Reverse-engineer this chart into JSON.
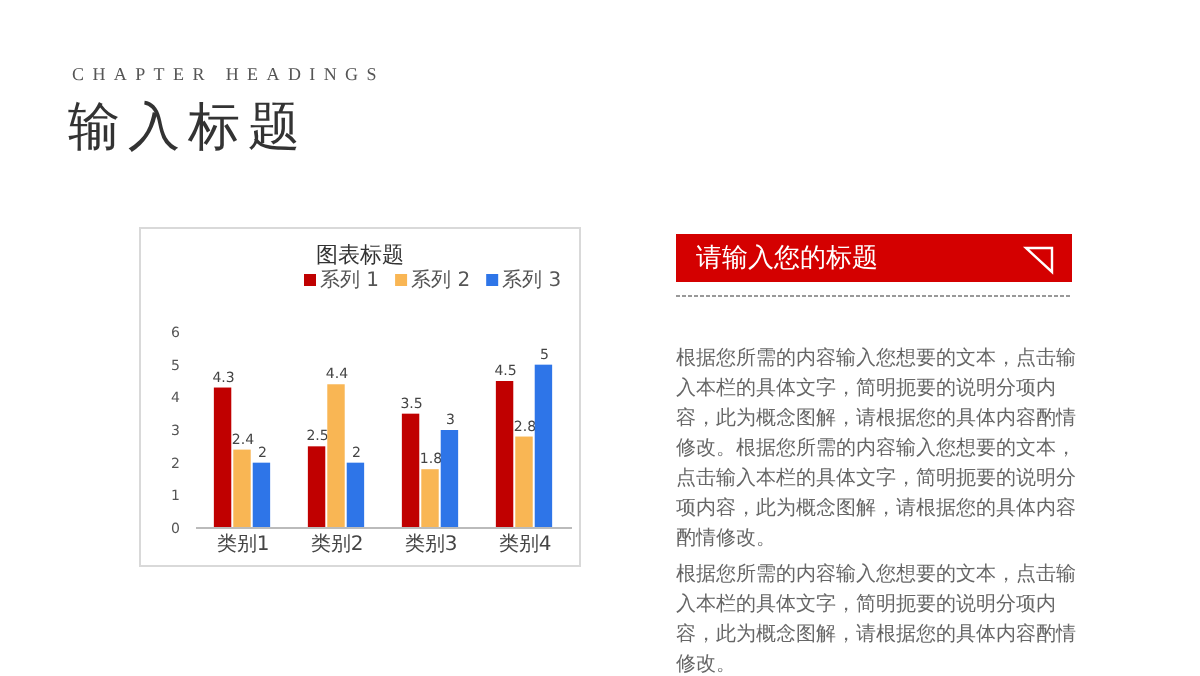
{
  "chart_data": {
    "type": "bar",
    "title": "图表标题",
    "categories": [
      "类别1",
      "类别2",
      "类别3",
      "类别4"
    ],
    "series": [
      {
        "name": "系列 1",
        "color": "#c00000",
        "values": [
          4.3,
          2.5,
          3.5,
          4.5
        ]
      },
      {
        "name": "系列 2",
        "color": "#f9b654",
        "values": [
          2.4,
          4.4,
          1.8,
          2.8
        ]
      },
      {
        "name": "系列 3",
        "color": "#2e75e8",
        "values": [
          2,
          2,
          3,
          5
        ]
      }
    ],
    "ylim": [
      0,
      6
    ],
    "yticks": [
      0,
      1,
      2,
      3,
      4,
      5,
      6
    ],
    "data_labels": true,
    "legend": "top",
    "annotations": [
      "CHAPTER HEADINGS",
      "输入标题",
      "请输入您的标题",
      "根据您所需的内容输入您想要的文本，点击输入本栏的具体文字，简明扼要的说明分项内容，此为概念图解，请根据您的具体内容酌情修改。根据您所需的内容输入您想要的文本，点击输入本栏的具体文字，简明扼要的说明分项内容，此为概念图解，请根据您的具体内容酌情修改。",
      "根据您所需的内容输入您想要的文本，点击输入本栏的具体文字，简明扼要的说明分项内容，此为概念图解，请根据您的具体内容酌情修改。"
    ]
  }
}
